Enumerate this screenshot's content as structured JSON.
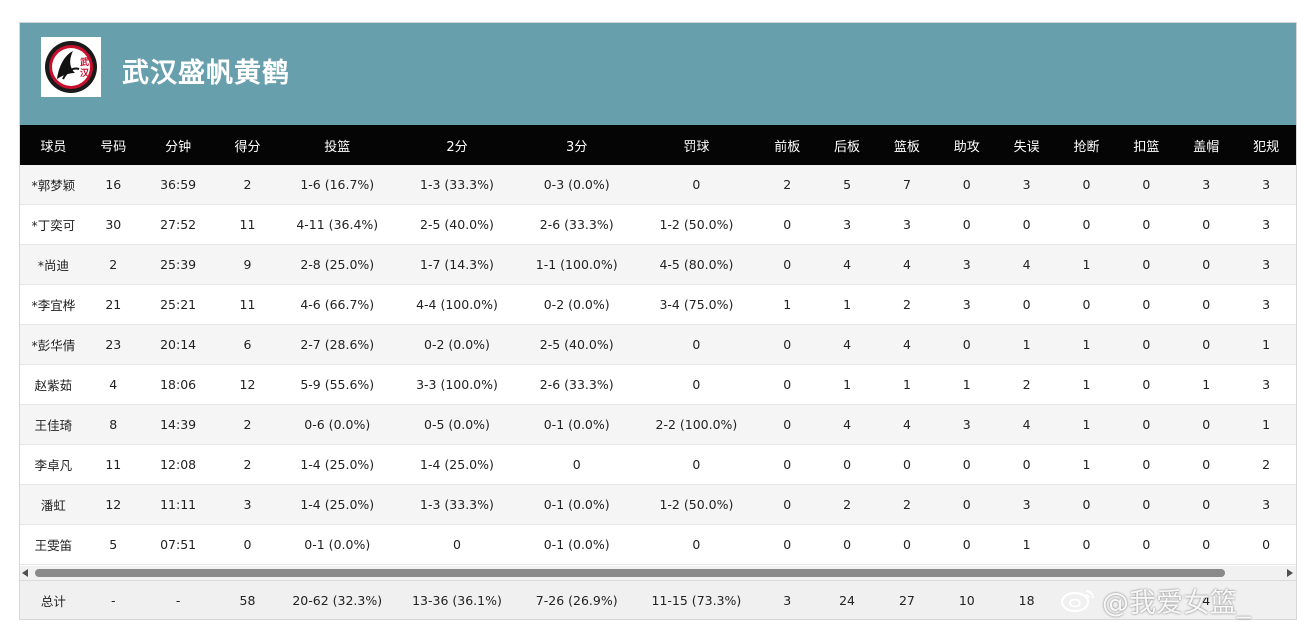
{
  "team": {
    "name": "武汉盛帆黄鹤",
    "logo_text": "武汉",
    "header_color": "#679fac"
  },
  "columns": [
    "球员",
    "号码",
    "分钟",
    "得分",
    "投篮",
    "2分",
    "3分",
    "罚球",
    "前板",
    "后板",
    "篮板",
    "助攻",
    "失误",
    "抢断",
    "扣篮",
    "盖帽",
    "犯规"
  ],
  "rows": [
    [
      "*郭梦颖",
      "16",
      "36:59",
      "2",
      "1-6 (16.7%)",
      "1-3 (33.3%)",
      "0-3 (0.0%)",
      "0",
      "2",
      "5",
      "7",
      "0",
      "3",
      "0",
      "0",
      "3",
      "3"
    ],
    [
      "*丁奕可",
      "30",
      "27:52",
      "11",
      "4-11 (36.4%)",
      "2-5 (40.0%)",
      "2-6 (33.3%)",
      "1-2 (50.0%)",
      "0",
      "3",
      "3",
      "0",
      "0",
      "0",
      "0",
      "0",
      "3"
    ],
    [
      "*尚迪",
      "2",
      "25:39",
      "9",
      "2-8 (25.0%)",
      "1-7 (14.3%)",
      "1-1 (100.0%)",
      "4-5 (80.0%)",
      "0",
      "4",
      "4",
      "3",
      "4",
      "1",
      "0",
      "0",
      "3"
    ],
    [
      "*李宜桦",
      "21",
      "25:21",
      "11",
      "4-6 (66.7%)",
      "4-4 (100.0%)",
      "0-2 (0.0%)",
      "3-4 (75.0%)",
      "1",
      "1",
      "2",
      "3",
      "0",
      "0",
      "0",
      "0",
      "3"
    ],
    [
      "*彭华倩",
      "23",
      "20:14",
      "6",
      "2-7 (28.6%)",
      "0-2 (0.0%)",
      "2-5 (40.0%)",
      "0",
      "0",
      "4",
      "4",
      "0",
      "1",
      "1",
      "0",
      "0",
      "1"
    ],
    [
      "赵紫茹",
      "4",
      "18:06",
      "12",
      "5-9 (55.6%)",
      "3-3 (100.0%)",
      "2-6 (33.3%)",
      "0",
      "0",
      "1",
      "1",
      "1",
      "2",
      "1",
      "0",
      "1",
      "3"
    ],
    [
      "王佳琦",
      "8",
      "14:39",
      "2",
      "0-6 (0.0%)",
      "0-5 (0.0%)",
      "0-1 (0.0%)",
      "2-2 (100.0%)",
      "0",
      "4",
      "4",
      "3",
      "4",
      "1",
      "0",
      "0",
      "1"
    ],
    [
      "李卓凡",
      "11",
      "12:08",
      "2",
      "1-4 (25.0%)",
      "1-4 (25.0%)",
      "0",
      "0",
      "0",
      "0",
      "0",
      "0",
      "0",
      "1",
      "0",
      "0",
      "2"
    ],
    [
      "潘虹",
      "12",
      "11:11",
      "3",
      "1-4 (25.0%)",
      "1-3 (33.3%)",
      "0-1 (0.0%)",
      "1-2 (50.0%)",
      "0",
      "2",
      "2",
      "0",
      "3",
      "0",
      "0",
      "0",
      "3"
    ],
    [
      "王雯笛",
      "5",
      "07:51",
      "0",
      "0-1 (0.0%)",
      "0",
      "0-1 (0.0%)",
      "0",
      "0",
      "0",
      "0",
      "0",
      "1",
      "0",
      "0",
      "0",
      "0"
    ]
  ],
  "totals": [
    "总计",
    "-",
    "-",
    "58",
    "20-62 (32.3%)",
    "13-36 (36.1%)",
    "7-26 (26.9%)",
    "11-15 (73.3%)",
    "3",
    "24",
    "27",
    "10",
    "18",
    "",
    "",
    "4",
    ""
  ],
  "watermark": "@我爱女篮_"
}
